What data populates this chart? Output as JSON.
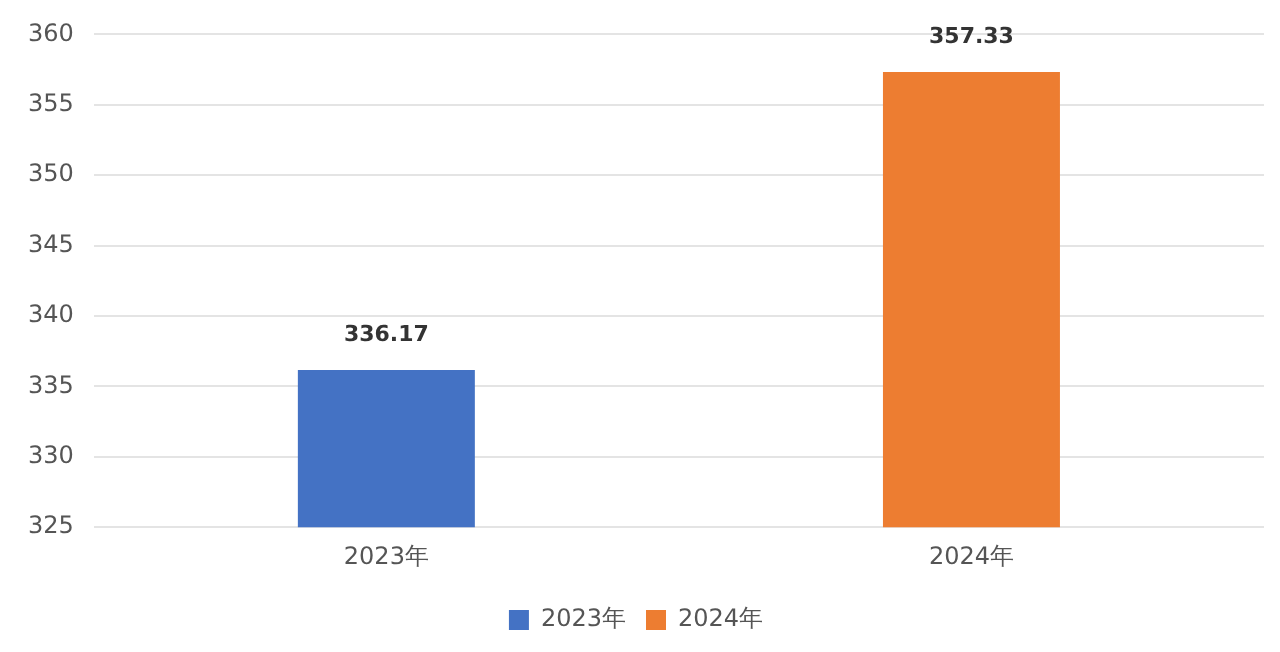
{
  "chart_data": {
    "type": "bar",
    "categories": [
      "2023年",
      "2024年"
    ],
    "series": [
      {
        "name": "2023年",
        "color": "#4472c4",
        "values": [
          336.17,
          null
        ]
      },
      {
        "name": "2024年",
        "color": "#ed7d31",
        "values": [
          null,
          357.33
        ]
      }
    ],
    "ylim": [
      325,
      360
    ],
    "yticks": [
      325,
      330,
      335,
      340,
      345,
      350,
      355,
      360
    ],
    "grid": "y",
    "legend": "bottom",
    "data_labels": true
  }
}
